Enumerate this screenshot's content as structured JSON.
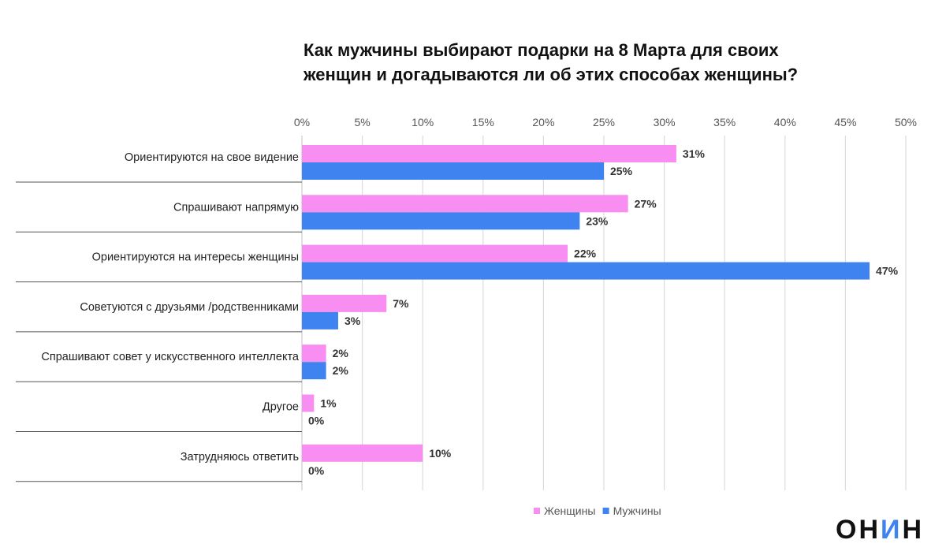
{
  "chart_data": {
    "type": "bar",
    "orientation": "horizontal",
    "title_lines": [
      "Как мужчины выбирают подарки на 8 Марта для своих",
      "женщин и догадываются ли об этих способах женщины?"
    ],
    "categories": [
      "Ориентируются на свое видение",
      "Спрашивают напрямую",
      "Ориентируются на интересы женщины",
      "Советуются с друзьями /родственниками",
      "Спрашивают совет у искусственного интеллекта",
      "Другое",
      "Затрудняюсь ответить"
    ],
    "series": [
      {
        "name": "Женщины",
        "color": "#f98ef2",
        "values": [
          31,
          27,
          22,
          7,
          2,
          1,
          10
        ]
      },
      {
        "name": "Мужчины",
        "color": "#3f83f0",
        "values": [
          25,
          23,
          47,
          3,
          2,
          0,
          0
        ]
      }
    ],
    "xlim": [
      0,
      50
    ],
    "x_ticks": [
      0,
      5,
      10,
      15,
      20,
      25,
      30,
      35,
      40,
      45,
      50
    ],
    "x_tick_labels": [
      "0%",
      "5%",
      "10%",
      "15%",
      "20%",
      "25%",
      "30%",
      "35%",
      "40%",
      "45%",
      "50%"
    ],
    "value_suffix": "%",
    "grid": true,
    "xaxis_position": "top",
    "legend_position": "bottom-center"
  },
  "logo": {
    "text": "ОНИН",
    "accent_color": "#3f83f0"
  }
}
